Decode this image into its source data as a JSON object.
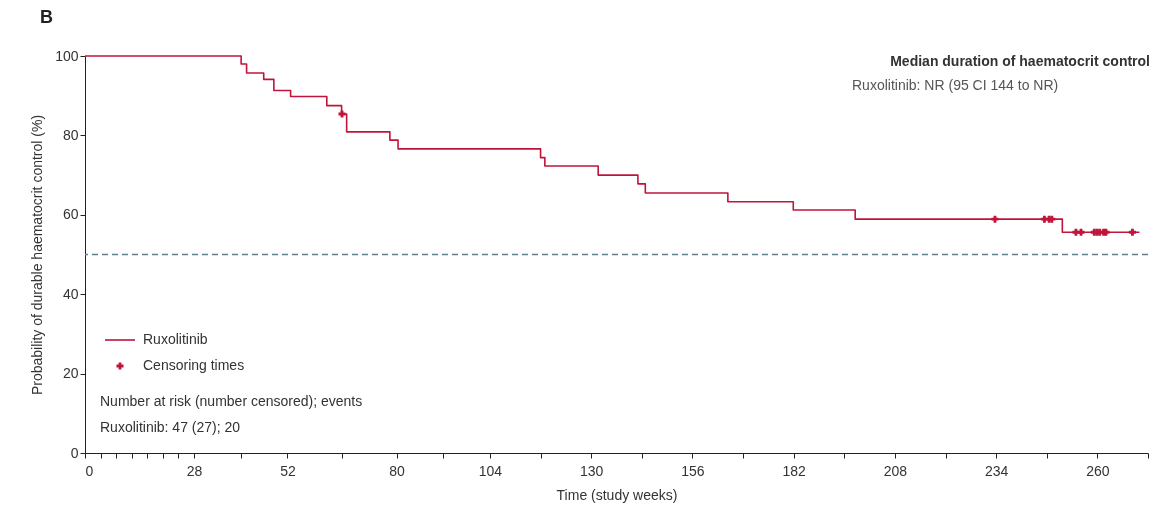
{
  "chart_data": {
    "type": "step",
    "title": "B",
    "xlabel": "Time (study weeks)",
    "ylabel": "Probability of durable haematocrit control (%)",
    "xlim": [
      0,
      273
    ],
    "ylim": [
      0,
      100
    ],
    "xticks": [
      0,
      {
        "value": 4,
        "label": null
      },
      {
        "value": 8,
        "label": null
      },
      {
        "value": 12,
        "label": null
      },
      {
        "value": 16,
        "label": null
      },
      {
        "value": 20,
        "label": null
      },
      {
        "value": 24,
        "label": null
      },
      28,
      {
        "value": 40,
        "label": null
      },
      52,
      {
        "value": 66,
        "label": null
      },
      80,
      {
        "value": 92,
        "label": null
      },
      104,
      {
        "value": 117,
        "label": null
      },
      130,
      {
        "value": 143,
        "label": null
      },
      156,
      {
        "value": 169,
        "label": null
      },
      182,
      {
        "value": 195,
        "label": null
      },
      208,
      {
        "value": 221,
        "label": null
      },
      234,
      {
        "value": 247,
        "label": null
      },
      260,
      {
        "value": 273,
        "label": null
      }
    ],
    "yticks": [
      0,
      20,
      40,
      60,
      80,
      100
    ],
    "series": [
      {
        "name": "Ruxolitinib",
        "color": "#c0143c",
        "marker": "none",
        "x": [
          0,
          40.1,
          41.5,
          45.9,
          48.5,
          52.8,
          62.1,
          65.9,
          67.2,
          78.3,
          80.4,
          117,
          118.1,
          131.8,
          142,
          143.9,
          165.1,
          181.9,
          197.8,
          251,
          270.8
        ],
        "values": [
          100,
          98,
          95.7,
          94.1,
          91.3,
          89.8,
          87.5,
          85.4,
          80.9,
          78.8,
          76.6,
          74.4,
          72.3,
          70,
          67.8,
          65.5,
          63.3,
          61.2,
          58.9,
          55.6,
          55.6
        ]
      },
      {
        "name": "Censoring times",
        "type": "scatter",
        "color": "#c0143c",
        "marker": "cross",
        "x": [
          66,
          233.7,
          246.4,
          247.6,
          248.3,
          254.5,
          255.8,
          259.2,
          259.9,
          260.6,
          261.6,
          262.2,
          269
        ],
        "values": [
          85.4,
          58.9,
          58.9,
          58.9,
          58.9,
          55.6,
          55.6,
          55.6,
          55.6,
          55.6,
          55.6,
          55.6,
          55.6
        ]
      }
    ],
    "ref_lines": [
      {
        "axis": "y",
        "value": 50,
        "color": "#5f7f8c",
        "line_style": "dashed"
      }
    ],
    "annotations": [
      "Median duration of haematocrit control",
      "Ruxolitinib: NR (95 CI 144 to NR)",
      "Number at risk (number censored); events",
      "Ruxolitinib: 47 (27); 20"
    ],
    "legend": "bottom left",
    "grid": false
  }
}
